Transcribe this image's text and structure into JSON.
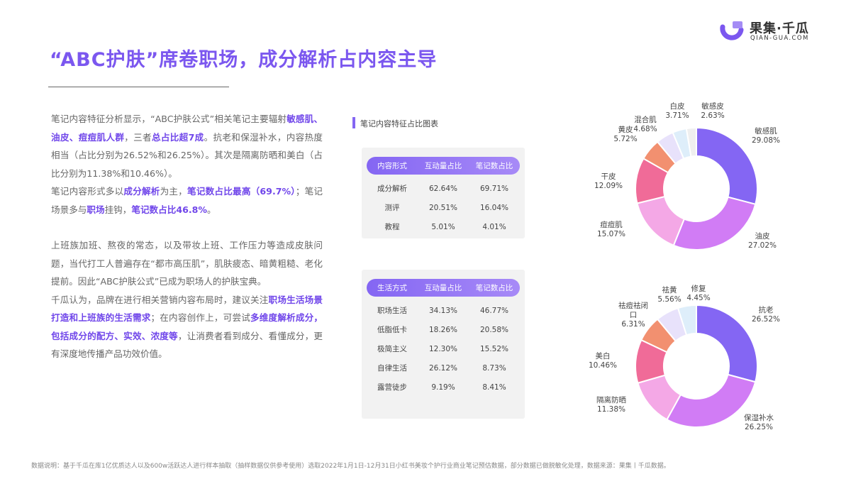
{
  "title": "“ABC护肤”席卷职场，成分解析占内容主导",
  "logo": {
    "name": "果集·千瓜",
    "url": "QIAN-GUA.COM",
    "color": "#7b57ef"
  },
  "paragraphs": [
    {
      "gap": false,
      "segments": [
        {
          "t": "笔记内容特征分析显示，“ABC护肤公式”相关笔记主要辐射"
        },
        {
          "t": "敏感肌、油皮、痘痘肌人群",
          "b": true
        },
        {
          "t": "，三者"
        },
        {
          "t": "总占比超7成",
          "b": true
        },
        {
          "t": "。抗老和保湿补水，内容热度相当（占比分别为26.52%和26.25%）。其次是隔离防晒和美白（占比分别为11.38%和10.46%）。"
        }
      ]
    },
    {
      "gap": false,
      "segments": [
        {
          "t": "笔记内容形式多以"
        },
        {
          "t": "成分解析",
          "b": true
        },
        {
          "t": "为主，"
        },
        {
          "t": "笔记数占比最高（69.7%）",
          "b": true
        },
        {
          "t": "；笔记场景多与"
        },
        {
          "t": "职场",
          "b": true
        },
        {
          "t": "挂钩，"
        },
        {
          "t": "笔记数占比46.8%",
          "b": true
        },
        {
          "t": "。"
        }
      ]
    },
    {
      "gap": true,
      "segments": [
        {
          "t": "上班族加班、熬夜的常态，以及带妆上班、工作压力等造成皮肤问题，当代打工人普遍存在“都市高压肌”，肌肤疲态、暗黄粗糙、老化提前。因此“ABC护肤公式”已成为职场人的护肤宝典。"
        }
      ]
    },
    {
      "gap": false,
      "segments": [
        {
          "t": "千瓜认为，品牌在进行相关营销内容布局时，建议关注"
        },
        {
          "t": "职场生活场景打造和上班族的生活需求",
          "b": true
        },
        {
          "t": "；在内容创作上，可尝试"
        },
        {
          "t": "多维度解析成分，包括成分的配方、实效、浓度等",
          "b": true
        },
        {
          "t": "，让消费者看到成分、看懂成分，更有深度地传播产品功效价值。"
        }
      ]
    }
  ],
  "section_title": "笔记内容特征占比图表",
  "table1": {
    "headers": [
      "内容形式",
      "互动量占比",
      "笔记数占比"
    ],
    "rows": [
      [
        "成分解析",
        "62.64%",
        "69.71%"
      ],
      [
        "测评",
        "20.51%",
        "16.04%"
      ],
      [
        "教程",
        "5.01%",
        "4.01%"
      ]
    ]
  },
  "table2": {
    "headers": [
      "生活方式",
      "互动量占比",
      "笔记数占比"
    ],
    "rows": [
      [
        "职场生活",
        "34.13%",
        "46.77%"
      ],
      [
        "低脂低卡",
        "18.26%",
        "20.58%"
      ],
      [
        "极简主义",
        "12.30%",
        "15.52%"
      ],
      [
        "自律生活",
        "26.12%",
        "8.73%"
      ],
      [
        "露营徒步",
        "9.19%",
        "8.41%"
      ]
    ]
  },
  "chart_data": [
    {
      "type": "pie",
      "donut": true,
      "categories": [
        "敏感肌",
        "油皮",
        "痘痘肌",
        "干皮",
        "黄皮",
        "混合肌",
        "白皮",
        "敏感皮"
      ],
      "values": [
        29.08,
        27.02,
        15.07,
        12.09,
        5.72,
        4.68,
        3.71,
        2.63
      ],
      "labels": [
        "29.08%",
        "27.02%",
        "15.07%",
        "12.09%",
        "5.72%",
        "4.68%",
        "3.71%",
        "2.63%"
      ],
      "colors": [
        "#8466f3",
        "#d17cf5",
        "#f4a8e6",
        "#f06b98",
        "#f29070",
        "#e8e2fb",
        "#deeefa",
        "#efefef"
      ]
    },
    {
      "type": "pie",
      "donut": true,
      "categories": [
        "抗老",
        "保湿补水",
        "隔离防晒",
        "美白",
        "祛痘祛闭口",
        "祛黄",
        "修复"
      ],
      "values": [
        26.52,
        26.25,
        11.38,
        10.46,
        6.31,
        5.56,
        4.45
      ],
      "labels": [
        "26.52%",
        "26.25%",
        "11.38%",
        "10.46%",
        "6.31%",
        "5.56%",
        "4.45%"
      ],
      "colors": [
        "#8466f3",
        "#d17cf5",
        "#f4a8e6",
        "#f06b98",
        "#f29070",
        "#e8e2fb",
        "#deeefa"
      ]
    }
  ],
  "footer": "数据说明：基于千瓜在库1亿优质达人以及600w活跃达人进行样本抽取（抽样数据仅供参考使用）选取2022年1月1日-12月31日小红书美妆个护行业商业笔记预估数据，部分数据已做脱敏化处理，数据来源：果集丨千瓜数据。"
}
